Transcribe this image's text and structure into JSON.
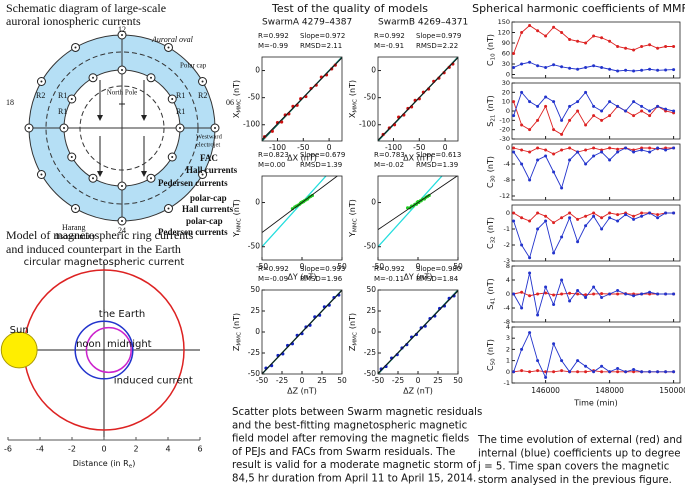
{
  "left": {
    "schematic": {
      "title": [
        "Schematic diagram of large-scale",
        "auroral ionospheric currents"
      ],
      "labels": {
        "hour_12": "12",
        "hour_18": "18",
        "hour_06": "06",
        "hour_24": "24",
        "auroral_oval": "Auroral oval",
        "polar_cap": "Polar cap",
        "north_pole": "North Pole",
        "r1": "R1",
        "r2": "R2",
        "westward": [
          "Westward",
          "electrojet"
        ],
        "fac": "FAC",
        "hall": "Hall currents",
        "pedersen": "Pedersen currents",
        "pc_hall": [
          "polar-cap",
          "Hall currents"
        ],
        "pc_pedersen": [
          "polar-cap",
          "Pedersen currents"
        ],
        "harang": [
          "Harang",
          "discontinuity"
        ]
      }
    },
    "ring_chart": {
      "type": "circles",
      "title": [
        "Model of magnetospheric ring currents",
        "and induced counterpart in the Earth"
      ],
      "xlabel": {
        "base": "Distance (in R",
        "sub": "e",
        "tail": ")"
      },
      "xlim": [
        -6,
        6
      ],
      "ylim": [
        -5.5,
        5.5
      ],
      "xticks": [
        -6,
        -4,
        -2,
        0,
        2,
        4,
        6
      ],
      "circles": [
        {
          "name": "circular magnetospheric current",
          "color": "#dd2222",
          "cx": 0,
          "r": 5
        },
        {
          "name": "the Earth",
          "color": "#2233cc",
          "cx": 0,
          "r": 1.8
        },
        {
          "name": "induced current",
          "color": "#cc22cc",
          "cx": 0.3,
          "r": 1.4
        }
      ],
      "sun": {
        "name": "Sun",
        "x": -5.3,
        "r": 0.7,
        "color": "#ffee00"
      },
      "labels": {
        "noon": "noon",
        "midnight": "midnight"
      }
    }
  },
  "mid": {
    "title": "Test of the quality of models",
    "columns": [
      "SwarmA  4279–4387",
      "SwarmB  4269–4371"
    ],
    "panels": [
      {
        "type": "scatter",
        "stats": [
          [
            {
              "label": "R=",
              "value": 0.992
            },
            {
              "label": "Slope=",
              "value": 0.972
            }
          ],
          [
            {
              "label": "M=",
              "value": -0.99
            },
            {
              "label": "RMSD=",
              "value": 2.11
            }
          ]
        ],
        "xlabel": "ΔX (nT)",
        "ylabel": {
          "base": "X",
          "sub": "MMC",
          "unit": "(nT)"
        },
        "xlim": [
          -130,
          25
        ],
        "ylim": [
          -130,
          25
        ],
        "xticks": [
          -100,
          -50,
          0
        ],
        "yticks": [
          -100,
          -50,
          0
        ],
        "color": "#cc1111",
        "identity_color": "#006655",
        "x": [
          -125,
          -110,
          -100,
          -92,
          -85,
          -78,
          -70,
          -62,
          -55,
          -45,
          -35,
          -25,
          -15,
          -5,
          5,
          12
        ],
        "y": [
          -122,
          -112,
          -96,
          -95,
          -82,
          -80,
          -66,
          -64,
          -52,
          -48,
          -33,
          -27,
          -12,
          -8,
          3,
          10
        ]
      },
      {
        "type": "scatter",
        "stats": [
          [
            {
              "label": "R=",
              "value": 0.992
            },
            {
              "label": "Slope=",
              "value": 0.979
            }
          ],
          [
            {
              "label": "M=",
              "value": -0.91
            },
            {
              "label": "RMSD=",
              "value": 2.22
            }
          ]
        ],
        "xlabel": "ΔX (nT)",
        "ylabel": {
          "base": "X",
          "sub": "MMC",
          "unit": "(nT)"
        },
        "xlim": [
          -130,
          25
        ],
        "ylim": [
          -130,
          25
        ],
        "xticks": [
          -100,
          -50,
          0
        ],
        "yticks": [
          -100,
          -50,
          0
        ],
        "color": "#cc1111",
        "identity_color": "#006655",
        "x": [
          -120,
          -108,
          -98,
          -90,
          -80,
          -72,
          -65,
          -58,
          -50,
          -42,
          -32,
          -22,
          -12,
          -2,
          8,
          15
        ],
        "y": [
          -118,
          -106,
          -100,
          -86,
          -82,
          -70,
          -67,
          -55,
          -52,
          -40,
          -34,
          -20,
          -14,
          -4,
          6,
          12
        ]
      },
      {
        "type": "scatter",
        "stats": [
          [
            {
              "label": "R=",
              "value": 0.823
            },
            {
              "label": "Slope=",
              "value": 0.679
            }
          ],
          [
            {
              "label": "M=",
              "value": 0,
              "value_label": "0.00"
            },
            {
              "label": "RMSD=",
              "value": 1.39
            }
          ]
        ],
        "xlabel": "ΔY (nT)",
        "ylabel": {
          "base": "Y",
          "sub": "MMC",
          "unit": "(nT)"
        },
        "xlim": [
          -50,
          50
        ],
        "ylim": [
          -65,
          30
        ],
        "xticks": [
          -50,
          0,
          50
        ],
        "yticks": [
          -50,
          0
        ],
        "color": "#22cc22",
        "identity_color": "#22dddd",
        "x": [
          -12,
          -9,
          -7,
          -5,
          -3,
          -2,
          -1,
          0,
          1,
          2,
          3,
          5,
          7,
          9,
          11,
          13
        ],
        "y": [
          -7,
          -5,
          -4,
          -3,
          -2,
          -1,
          0,
          0,
          1,
          1,
          2,
          3,
          4,
          6,
          7,
          8
        ]
      },
      {
        "type": "scatter",
        "stats": [
          [
            {
              "label": "R=",
              "value": 0.783
            },
            {
              "label": "Slope=",
              "value": 0.613
            }
          ],
          [
            {
              "label": "M=",
              "value": -0.02
            },
            {
              "label": "RMSD=",
              "value": 1.39
            }
          ]
        ],
        "xlabel": "ΔY (nT)",
        "ylabel": {
          "base": "Y",
          "sub": "MMC",
          "unit": "(nT)"
        },
        "xlim": [
          -50,
          50
        ],
        "ylim": [
          -65,
          30
        ],
        "xticks": [
          -50,
          0,
          50
        ],
        "yticks": [
          -50,
          0
        ],
        "color": "#22cc22",
        "identity_color": "#22dddd",
        "x": [
          -13,
          -10,
          -8,
          -6,
          -4,
          -2,
          -1,
          0,
          1,
          3,
          4,
          6,
          8,
          10,
          12,
          14
        ],
        "y": [
          -6,
          -6,
          -4,
          -4,
          -2,
          -2,
          0,
          1,
          0,
          2,
          2,
          4,
          4,
          6,
          7,
          8
        ]
      },
      {
        "type": "scatter",
        "stats": [
          [
            {
              "label": "R=",
              "value": 0.992
            },
            {
              "label": "Slope=",
              "value": 0.993
            }
          ],
          [
            {
              "label": "M=",
              "value": -0.09
            },
            {
              "label": "RMSD=",
              "value": 1.96
            }
          ]
        ],
        "xlabel": "ΔZ (nT)",
        "ylabel": {
          "base": "Z",
          "sub": "MMC",
          "unit": "(nT)"
        },
        "xlim": [
          -50,
          50
        ],
        "ylim": [
          -50,
          50
        ],
        "xticks": [
          -50,
          -25,
          0,
          25,
          50
        ],
        "yticks": [
          -50,
          -25,
          0,
          25,
          50
        ],
        "color": "#1122bb",
        "identity_color": "#006655",
        "x": [
          -45,
          -38,
          -30,
          -24,
          -18,
          -12,
          -6,
          0,
          5,
          10,
          16,
          22,
          28,
          34,
          40,
          46
        ],
        "y": [
          -43,
          -40,
          -28,
          -26,
          -16,
          -14,
          -4,
          -2,
          6,
          8,
          18,
          20,
          30,
          32,
          41,
          44
        ]
      },
      {
        "type": "scatter",
        "stats": [
          [
            {
              "label": "R=",
              "value": 0.992
            },
            {
              "label": "Slope=",
              "value": 0.98,
              "value_label": "0.980"
            }
          ],
          [
            {
              "label": "M=",
              "value": -0.11
            },
            {
              "label": "RMSD=",
              "value": 1.84
            }
          ]
        ],
        "xlabel": "ΔZ (nT)",
        "ylabel": {
          "base": "Z",
          "sub": "MMC",
          "unit": "(nT)"
        },
        "xlim": [
          -50,
          50
        ],
        "ylim": [
          -50,
          50
        ],
        "xticks": [
          -50,
          -25,
          0,
          25,
          50
        ],
        "yticks": [
          -50,
          -25,
          0,
          25,
          50
        ],
        "color": "#1122bb",
        "identity_color": "#006655",
        "x": [
          -46,
          -40,
          -33,
          -26,
          -20,
          -14,
          -8,
          -2,
          4,
          9,
          15,
          21,
          27,
          33,
          39,
          45
        ],
        "y": [
          -44,
          -41,
          -31,
          -27,
          -19,
          -15,
          -6,
          -3,
          5,
          7,
          16,
          19,
          28,
          31,
          40,
          43
        ]
      }
    ],
    "caption": [
      "Scatter plots between Swarm magnetic residuals",
      "and the best-fitting magnetospheric magnetic",
      "field model after removing the magnetic fields",
      "of PEJs and FACs from Swarm residuals. The",
      "result is valid for a moderate magnetic storm of",
      "84,5 hr duration from April 11 to April 15, 2014."
    ]
  },
  "right": {
    "title": "Spherical harmonic coefficients of MMF",
    "x": [
      145000,
      145250,
      145500,
      145750,
      146000,
      146250,
      146500,
      146750,
      147000,
      147250,
      147500,
      147750,
      148000,
      148250,
      148500,
      148750,
      149000,
      149250,
      149500,
      149750,
      150000
    ],
    "xlim": [
      144950,
      150200
    ],
    "xticks": [
      146000,
      148000,
      150000
    ],
    "xlabel": "Time (min)",
    "panels": [
      {
        "type": "line",
        "ylabel": {
          "base": "C",
          "sub": "10",
          "unit": "(nT)"
        },
        "ylim": [
          -10,
          150
        ],
        "yticks": [
          0,
          30,
          60,
          90,
          120,
          150
        ],
        "series": [
          {
            "color": "#dd2222",
            "values": [
              60,
              120,
              140,
              125,
              110,
              135,
              120,
              100,
              95,
              90,
              110,
              105,
              95,
              80,
              75,
              70,
              80,
              85,
              75,
              80,
              80
            ]
          },
          {
            "color": "#2233cc",
            "values": [
              20,
              30,
              35,
              25,
              20,
              28,
              22,
              18,
              15,
              20,
              25,
              20,
              15,
              10,
              12,
              10,
              12,
              15,
              12,
              13,
              14
            ]
          }
        ]
      },
      {
        "type": "line",
        "ylabel": {
          "base": "S",
          "sub": "21",
          "unit": "(nT)"
        },
        "ylim": [
          -30,
          30
        ],
        "yticks": [
          -30,
          -20,
          -10,
          0,
          10,
          20,
          30
        ],
        "series": [
          {
            "color": "#dd2222",
            "values": [
              10,
              -15,
              -20,
              -10,
              5,
              -20,
              -25,
              -10,
              0,
              -15,
              -5,
              -10,
              -5,
              5,
              0,
              -5,
              0,
              -5,
              5,
              0,
              -2
            ]
          },
          {
            "color": "#2233cc",
            "values": [
              -5,
              20,
              10,
              5,
              15,
              10,
              -10,
              5,
              10,
              20,
              5,
              0,
              10,
              5,
              0,
              10,
              5,
              0,
              5,
              2,
              0
            ]
          }
        ]
      },
      {
        "type": "line",
        "ylabel": {
          "base": "C",
          "sub": "30",
          "unit": "(nT)"
        },
        "ylim": [
          -13,
          1
        ],
        "yticks": [
          -12,
          -8,
          -4,
          0
        ],
        "series": [
          {
            "color": "#dd2222",
            "values": [
              0,
              -0.5,
              -1,
              0,
              -0.5,
              -1.5,
              -0.5,
              0,
              -1,
              -0.5,
              0,
              -0.5,
              0,
              -0.3,
              0,
              -0.5,
              0,
              0,
              -0.2,
              0,
              0
            ]
          },
          {
            "color": "#2233cc",
            "values": [
              -1,
              -4,
              -8,
              -3,
              -2,
              -6,
              -10,
              -3,
              -1,
              -4,
              -2,
              -1,
              -3,
              -1,
              0,
              -1,
              -0.5,
              -1,
              0,
              -0.5,
              0
            ]
          }
        ]
      },
      {
        "type": "line",
        "ylabel": {
          "base": "C",
          "sub": "32",
          "unit": "(nT)"
        },
        "ylim": [
          -3,
          0.5
        ],
        "yticks": [
          -3,
          -2,
          -1,
          0
        ],
        "series": [
          {
            "color": "#dd2222",
            "values": [
              0,
              -0.3,
              -0.5,
              0,
              -0.2,
              -0.6,
              -0.3,
              0,
              -0.4,
              -0.2,
              0,
              -0.3,
              0,
              -0.1,
              0,
              -0.2,
              0,
              0,
              -0.1,
              0,
              0
            ]
          },
          {
            "color": "#2233cc",
            "values": [
              -0.5,
              -2,
              -2.8,
              -1,
              -0.5,
              -2.5,
              -1.5,
              -0.3,
              -1.8,
              -0.8,
              -0.2,
              -1,
              -0.3,
              -0.5,
              -0.1,
              -0.4,
              -0.2,
              0,
              -0.3,
              0,
              0
            ]
          }
        ]
      },
      {
        "type": "line",
        "ylabel": {
          "base": "S",
          "sub": "41",
          "unit": "(nT)"
        },
        "ylim": [
          -8,
          8
        ],
        "yticks": [
          -8,
          -4,
          0,
          4,
          8
        ],
        "series": [
          {
            "color": "#dd2222",
            "values": [
              0,
              0.5,
              -0.5,
              0,
              0.3,
              -0.3,
              0,
              0.2,
              0,
              -0.2,
              0,
              0.1,
              0,
              0,
              0.1,
              0,
              0,
              0,
              0,
              0,
              0
            ]
          },
          {
            "color": "#2233cc",
            "values": [
              0,
              -4,
              6,
              -6,
              2,
              -3,
              4,
              -2,
              1,
              -1,
              2,
              -1,
              0,
              1,
              0,
              -0.5,
              0,
              0.5,
              0,
              0,
              0
            ]
          }
        ]
      },
      {
        "type": "line",
        "ylabel": {
          "base": "C",
          "sub": "50",
          "unit": "(nT)"
        },
        "ylim": [
          -1,
          4
        ],
        "yticks": [
          -1,
          0,
          1,
          2,
          3,
          4
        ],
        "series": [
          {
            "color": "#dd2222",
            "values": [
              0,
              0.1,
              0,
              0.1,
              0,
              0,
              0.1,
              0,
              0,
              0,
              0.1,
              0,
              0,
              0,
              0,
              0,
              0,
              0,
              0,
              0,
              0
            ]
          },
          {
            "color": "#2233cc",
            "values": [
              0,
              2,
              3.5,
              1,
              -0.5,
              2.5,
              1,
              0,
              1,
              0.5,
              0,
              0.5,
              0,
              0.3,
              0,
              0.2,
              0,
              0,
              0,
              0,
              0
            ]
          }
        ]
      }
    ],
    "caption": [
      "The time evolution of external (red) and",
      "internal (blue) coefficients up to degree",
      "j = 5. Time span covers the magnetic",
      "storm analysed in the previous figure."
    ]
  }
}
